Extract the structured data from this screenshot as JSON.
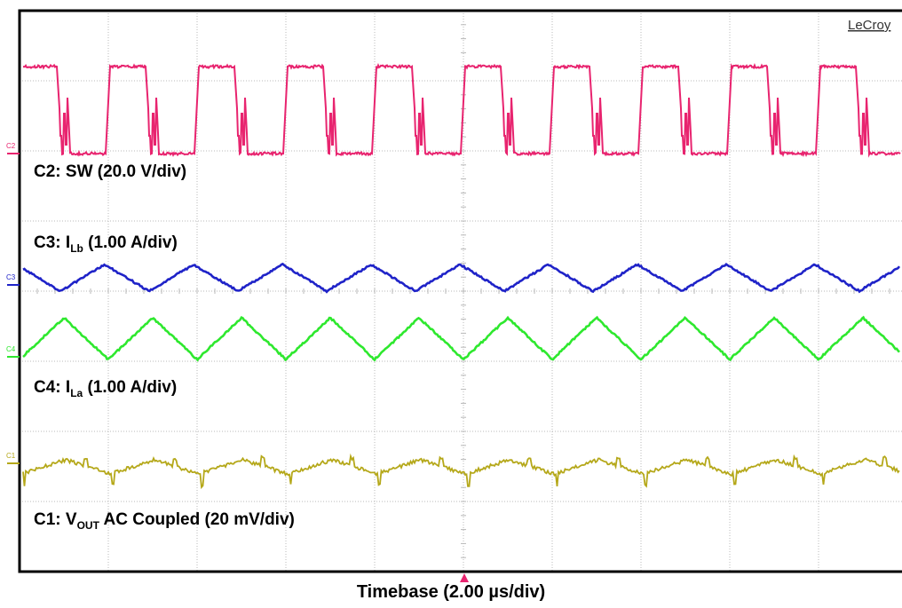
{
  "brand": "LeCroy",
  "timebase_label": "Timebase (2.00 µs/div)",
  "colors": {
    "c1": "#b5a81a",
    "c2": "#e8246f",
    "c3": "#1f23c8",
    "c4": "#2ee82e",
    "grid": "#b8b8b8",
    "frame": "#000000"
  },
  "chart_data": {
    "type": "line",
    "title": "",
    "xlabel": "Timebase (2.00 µs/div)",
    "ylabel": "",
    "x_divisions": 10,
    "y_divisions": 8,
    "grid": true,
    "switching_period_us": 2.0,
    "series": [
      {
        "channel": "C2",
        "label": "C2: SW (20.0 V/div)",
        "shape": "square",
        "marker": "C2"
      },
      {
        "channel": "C3",
        "label_parts": [
          "C3: I",
          "Lb",
          " (1.00 A/div)"
        ],
        "shape": "triangle-small",
        "marker": "C3"
      },
      {
        "channel": "C4",
        "label_parts": [
          "C4: I",
          "La",
          " (1.00 A/div)"
        ],
        "shape": "triangle-large",
        "marker": "C4"
      },
      {
        "channel": "C1",
        "label_parts": [
          "C1: V",
          "OUT",
          " AC Coupled (20 mV/div)"
        ],
        "shape": "ripple",
        "marker": "C1"
      }
    ]
  }
}
